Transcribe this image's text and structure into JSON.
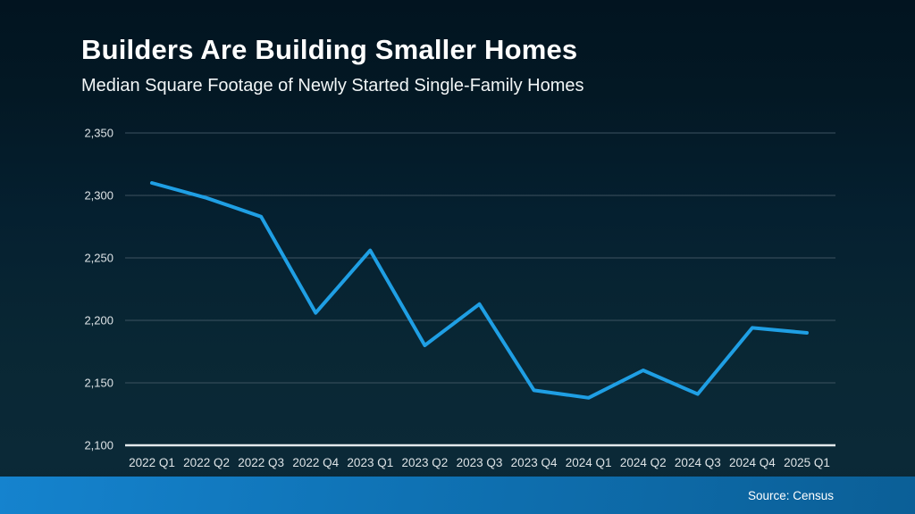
{
  "header": {
    "title": "Builders Are Building Smaller Homes",
    "subtitle": "Median Square Footage of Newly Started Single-Family Homes"
  },
  "footer": {
    "source": "Source: Census"
  },
  "colors": {
    "background_top": "#021420",
    "background_bottom": "#0b2836",
    "line": "#1f9fe4",
    "gridline": "#3d5260",
    "axis_line": "#e3e9ec",
    "tick_text": "#dde3e6",
    "title_text": "#ffffff",
    "footer_bar_left": "#1583ce",
    "footer_bar_right": "#0b5f97"
  },
  "chart_data": {
    "type": "line",
    "title": "Builders Are Building Smaller Homes",
    "subtitle": "Median Square Footage of Newly Started Single-Family Homes",
    "categories": [
      "2022 Q1",
      "2022 Q2",
      "2022 Q3",
      "2022 Q4",
      "2023 Q1",
      "2023 Q2",
      "2023 Q3",
      "2023 Q4",
      "2024 Q1",
      "2024 Q2",
      "2024 Q3",
      "2024 Q4",
      "2025 Q1"
    ],
    "values": [
      2310,
      2298,
      2283,
      2206,
      2256,
      2180,
      2213,
      2144,
      2138,
      2160,
      2141,
      2194,
      2190
    ],
    "xlabel": "",
    "ylabel": "",
    "ylim": [
      2100,
      2350
    ],
    "yticks": [
      2100,
      2150,
      2200,
      2250,
      2300,
      2350
    ],
    "grid": true,
    "legend": false,
    "source": "Source: Census"
  }
}
